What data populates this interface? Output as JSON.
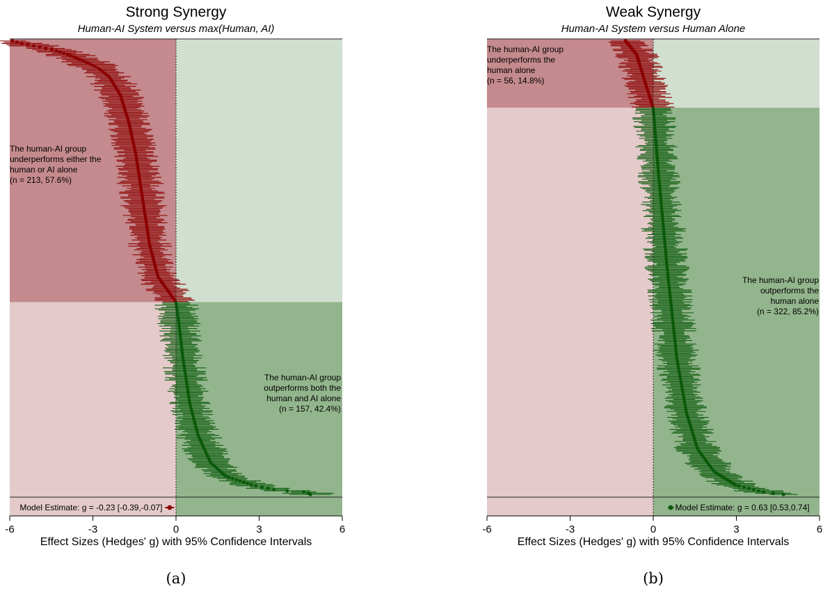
{
  "colors": {
    "neg_dark_bg": "#c48a8d",
    "neg_light_bg": "#e4cacb",
    "pos_light_bg": "#d0dfcf",
    "pos_dark_bg": "#93b58d",
    "neg_series": "#8b0000",
    "pos_series": "#0b5a0b"
  },
  "chart_data": [
    {
      "type": "forest",
      "title": "Strong Synergy",
      "subtitle": "Human-AI System versus max(Human, AI)",
      "xlabel": "Effect Sizes (Hedges' g) with 95% Confidence Intervals",
      "panel_label": "(a)",
      "xlim": [
        -6,
        6
      ],
      "xticks": [
        "-6",
        "-3",
        "0",
        "3",
        "6"
      ],
      "reference_line": 0,
      "n_negative": 213,
      "n_positive": 157,
      "annotations": {
        "negative": [
          "The human-AI group",
          "underperforms either the",
          "human or AI alone",
          "(n = 213, 57.6%)"
        ],
        "positive": [
          "The human-AI group",
          "outperforms both the",
          "human and AI alone",
          "(n = 157, 42.4%)"
        ]
      },
      "model_estimate": {
        "label": "Model Estimate: g = -0.23 [-0.39,-0.07]",
        "g": -0.23,
        "ci": [
          -0.39,
          -0.07
        ]
      },
      "quantiles": [
        [
          0,
          -5.9
        ],
        [
          0.005,
          -5.6
        ],
        [
          0.02,
          -4.4
        ],
        [
          0.03,
          -3.9
        ],
        [
          0.045,
          -3.3
        ],
        [
          0.06,
          -2.8
        ],
        [
          0.08,
          -2.4
        ],
        [
          0.12,
          -2.0
        ],
        [
          0.18,
          -1.7
        ],
        [
          0.25,
          -1.45
        ],
        [
          0.35,
          -1.2
        ],
        [
          0.45,
          -0.95
        ],
        [
          0.52,
          -0.65
        ],
        [
          0.576,
          0.0
        ],
        [
          0.62,
          0.1
        ],
        [
          0.7,
          0.25
        ],
        [
          0.8,
          0.5
        ],
        [
          0.87,
          0.8
        ],
        [
          0.93,
          1.25
        ],
        [
          0.96,
          1.8
        ],
        [
          0.98,
          2.8
        ],
        [
          0.99,
          3.6
        ],
        [
          0.995,
          4.7
        ],
        [
          1,
          4.85
        ]
      ]
    },
    {
      "type": "forest",
      "title": "Weak Synergy",
      "subtitle": "Human-AI System versus Human Alone",
      "xlabel": "Effect Sizes (Hedges' g) with 95% Confidence Intervals",
      "panel_label": "(b)",
      "xlim": [
        -6,
        6
      ],
      "xticks": [
        "-6",
        "-3",
        "0",
        "3",
        "6"
      ],
      "reference_line": 0,
      "n_negative": 56,
      "n_positive": 322,
      "annotations": {
        "negative": [
          "The human-AI group",
          "underperforms the",
          "human alone",
          "(n = 56, 14.8%)"
        ],
        "positive": [
          "The human-AI group",
          "outperforms the",
          "human alone",
          "(n = 322, 85.2%)"
        ]
      },
      "model_estimate": {
        "label": "Model Estimate: g = 0.63 [0.53,0.74]",
        "g": 0.63,
        "ci": [
          0.53,
          0.74
        ]
      },
      "quantiles": [
        [
          0,
          -1.0
        ],
        [
          0.03,
          -0.6
        ],
        [
          0.08,
          -0.35
        ],
        [
          0.148,
          0.0
        ],
        [
          0.3,
          0.2
        ],
        [
          0.5,
          0.5
        ],
        [
          0.7,
          0.85
        ],
        [
          0.82,
          1.2
        ],
        [
          0.9,
          1.6
        ],
        [
          0.95,
          2.2
        ],
        [
          0.98,
          3.0
        ],
        [
          0.995,
          4.0
        ],
        [
          1,
          4.7
        ]
      ]
    }
  ]
}
